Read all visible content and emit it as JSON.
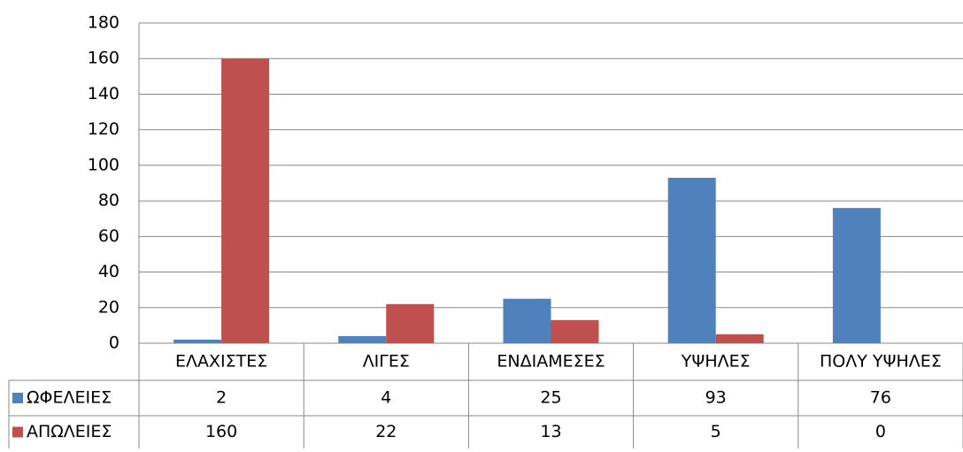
{
  "chart_data": {
    "type": "bar",
    "categories": [
      "ΕΛΑΧΙΣΤΕΣ",
      "ΛΙΓΕΣ",
      "ΕΝΔΙΑΜΕΣΕΣ",
      "ΥΨΗΛΕΣ",
      "ΠΟΛΥ ΥΨΗΛΕΣ"
    ],
    "series": [
      {
        "name": "ΩΦΕΛΕΙΕΣ",
        "color": "#4f81bd",
        "values": [
          2,
          4,
          25,
          93,
          76
        ]
      },
      {
        "name": "ΑΠΩΛΕΙΕΣ",
        "color": "#c0504d",
        "values": [
          160,
          22,
          13,
          5,
          0
        ]
      }
    ],
    "ylim": [
      0,
      180
    ],
    "yticks": [
      0,
      20,
      40,
      60,
      80,
      100,
      120,
      140,
      160,
      180
    ],
    "grid": true
  }
}
